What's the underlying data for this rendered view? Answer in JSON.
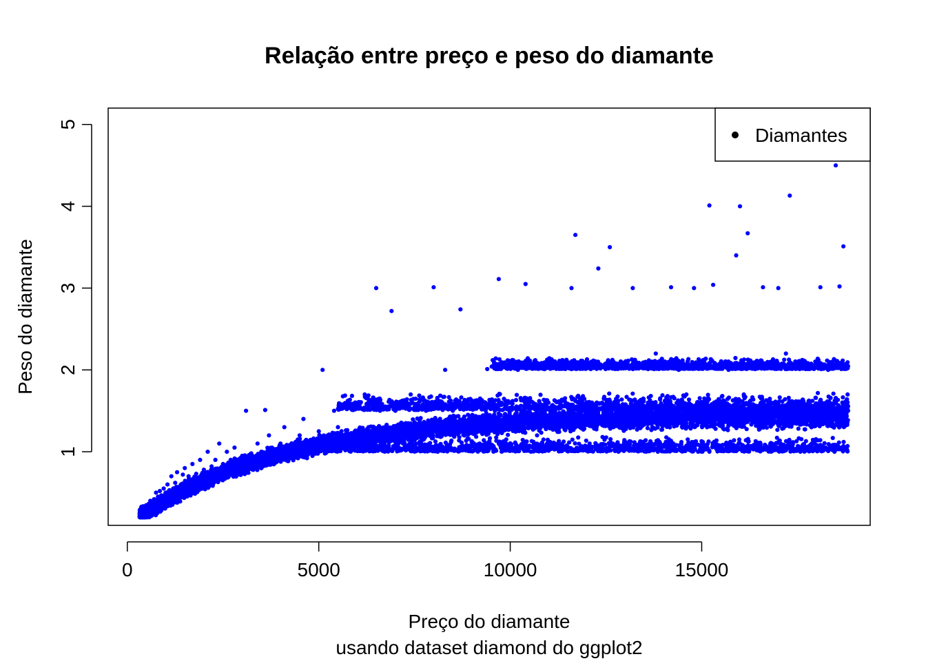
{
  "chart_data": {
    "type": "scatter",
    "title": "Relação entre preço e peso do diamante",
    "xlabel": "Preço do diamante",
    "subtitle": "usando dataset diamond do ggplot2",
    "ylabel": "Peso do diamante",
    "xlim": [
      -500,
      19400
    ],
    "ylim": [
      0.1,
      5.2
    ],
    "x_ticks": [
      0,
      5000,
      10000,
      15000
    ],
    "x_tick_labels": [
      "0",
      "5000",
      "10000",
      "15000"
    ],
    "y_ticks": [
      1,
      2,
      3,
      4,
      5
    ],
    "y_tick_labels": [
      "1",
      "2",
      "3",
      "4",
      "5"
    ],
    "grid": false,
    "legend": {
      "position": "top-right",
      "entries": [
        {
          "label": "Diamantes",
          "color": "#000000",
          "marker": "filled-circle"
        }
      ]
    },
    "series": [
      {
        "name": "Diamantes",
        "color": "#0000ff",
        "points": [
          [
            326,
            0.23
          ],
          [
            350,
            0.21
          ],
          [
            380,
            0.26
          ],
          [
            400,
            0.3
          ],
          [
            420,
            0.24
          ],
          [
            450,
            0.31
          ],
          [
            480,
            0.28
          ],
          [
            500,
            0.33
          ],
          [
            520,
            0.27
          ],
          [
            550,
            0.35
          ],
          [
            580,
            0.3
          ],
          [
            600,
            0.4
          ],
          [
            620,
            0.32
          ],
          [
            650,
            0.36
          ],
          [
            700,
            0.42
          ],
          [
            720,
            0.3
          ],
          [
            750,
            0.5
          ],
          [
            780,
            0.41
          ],
          [
            800,
            0.45
          ],
          [
            850,
            0.52
          ],
          [
            900,
            0.4
          ],
          [
            950,
            0.55
          ],
          [
            1000,
            0.5
          ],
          [
            1050,
            0.6
          ],
          [
            1100,
            0.53
          ],
          [
            1150,
            0.7
          ],
          [
            1200,
            0.55
          ],
          [
            1250,
            0.62
          ],
          [
            1300,
            0.75
          ],
          [
            1400,
            0.6
          ],
          [
            1450,
            0.72
          ],
          [
            1500,
            0.8
          ],
          [
            1600,
            0.7
          ],
          [
            1700,
            0.85
          ],
          [
            1800,
            0.73
          ],
          [
            1900,
            0.9
          ],
          [
            2000,
            0.78
          ],
          [
            2100,
            1.0
          ],
          [
            2200,
            0.82
          ],
          [
            2300,
            0.9
          ],
          [
            2400,
            1.1
          ],
          [
            2500,
            0.85
          ],
          [
            2600,
            1.0
          ],
          [
            2700,
            0.9
          ],
          [
            2800,
            1.05
          ],
          [
            3000,
            0.95
          ],
          [
            3100,
            1.5
          ],
          [
            3200,
            0.9
          ],
          [
            3400,
            1.1
          ],
          [
            3500,
            1.0
          ],
          [
            3600,
            1.51
          ],
          [
            3700,
            1.2
          ],
          [
            3800,
            0.95
          ],
          [
            4000,
            1.1
          ],
          [
            4100,
            1.3
          ],
          [
            4300,
            1.0
          ],
          [
            4500,
            1.2
          ],
          [
            4600,
            1.4
          ],
          [
            4800,
            1.1
          ],
          [
            5000,
            1.25
          ],
          [
            5100,
            2.0
          ],
          [
            5200,
            1.05
          ],
          [
            5400,
            1.5
          ],
          [
            5500,
            1.3
          ],
          [
            5700,
            1.2
          ],
          [
            5900,
            1.51
          ],
          [
            6000,
            1.1
          ],
          [
            6200,
            1.7
          ],
          [
            6300,
            1.3
          ],
          [
            6500,
            3.0
          ],
          [
            6600,
            1.5
          ],
          [
            6800,
            1.2
          ],
          [
            6900,
            2.72
          ],
          [
            7000,
            1.5
          ],
          [
            7200,
            1.1
          ],
          [
            7400,
            1.7
          ],
          [
            7600,
            1.3
          ],
          [
            7800,
            1.5
          ],
          [
            8000,
            3.01
          ],
          [
            8100,
            1.2
          ],
          [
            8300,
            2.0
          ],
          [
            8500,
            1.5
          ],
          [
            8700,
            2.74
          ],
          [
            8800,
            1.2
          ],
          [
            9000,
            1.6
          ],
          [
            9200,
            1.1
          ],
          [
            9400,
            2.01
          ],
          [
            9600,
            1.5
          ],
          [
            9700,
            3.11
          ],
          [
            9900,
            1.3
          ],
          [
            10000,
            1.6
          ],
          [
            10200,
            2.0
          ],
          [
            10400,
            3.05
          ],
          [
            10500,
            1.51
          ],
          [
            10700,
            1.2
          ],
          [
            10900,
            2.01
          ],
          [
            11000,
            1.6
          ],
          [
            11200,
            1.3
          ],
          [
            11400,
            2.1
          ],
          [
            11600,
            3.0
          ],
          [
            11700,
            3.65
          ],
          [
            11900,
            1.52
          ],
          [
            12100,
            2.01
          ],
          [
            12300,
            3.24
          ],
          [
            12400,
            1.6
          ],
          [
            12600,
            3.5
          ],
          [
            12800,
            2.02
          ],
          [
            13000,
            1.5
          ],
          [
            13200,
            3.0
          ],
          [
            13400,
            2.05
          ],
          [
            13600,
            1.6
          ],
          [
            13800,
            2.2
          ],
          [
            14000,
            1.51
          ],
          [
            14200,
            3.01
          ],
          [
            14400,
            2.0
          ],
          [
            14600,
            1.7
          ],
          [
            14800,
            3.0
          ],
          [
            15000,
            2.1
          ],
          [
            15200,
            4.01
          ],
          [
            15300,
            3.04
          ],
          [
            15500,
            1.51
          ],
          [
            15700,
            2.0
          ],
          [
            15900,
            3.4
          ],
          [
            16000,
            4.0
          ],
          [
            16100,
            1.7
          ],
          [
            16200,
            3.67
          ],
          [
            16400,
            2.01
          ],
          [
            16600,
            3.01
          ],
          [
            16800,
            1.52
          ],
          [
            17000,
            3.0
          ],
          [
            17200,
            2.2
          ],
          [
            17300,
            4.13
          ],
          [
            17500,
            1.6
          ],
          [
            17700,
            2.05
          ],
          [
            17900,
            1.51
          ],
          [
            18100,
            3.01
          ],
          [
            18300,
            2.0
          ],
          [
            18500,
            4.5
          ],
          [
            18600,
            3.02
          ],
          [
            18700,
            3.51
          ],
          [
            18800,
            2.02
          ],
          [
            18823,
            1.5
          ]
        ]
      }
    ],
    "bands": [
      {
        "xmin": 5000,
        "xmax": 18823,
        "y": 1.0,
        "spread": 0.2
      },
      {
        "xmin": 5500,
        "xmax": 18823,
        "y": 1.51,
        "spread": 0.22
      },
      {
        "xmin": 9500,
        "xmax": 18823,
        "y": 2.01,
        "spread": 0.15
      }
    ]
  }
}
